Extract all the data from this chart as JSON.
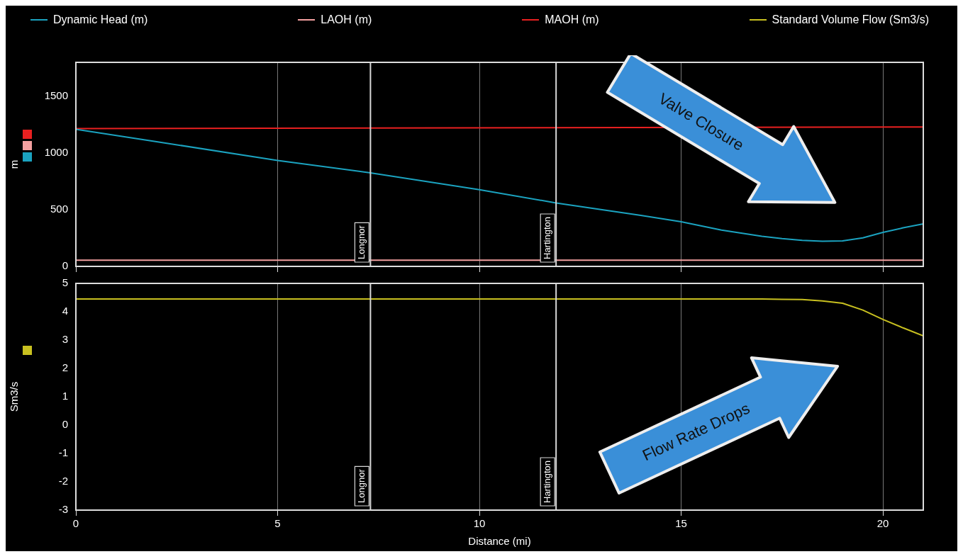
{
  "chart_data": [
    {
      "type": "line",
      "ylabel": "m",
      "legend": "top",
      "grid": "x",
      "marker": "none",
      "tick_labels": "y",
      "xlim": [
        0,
        21
      ],
      "xticks": [
        0,
        5,
        10,
        15,
        20
      ],
      "ylim": [
        0,
        1800
      ],
      "yticks": [
        0,
        500,
        1000,
        1500
      ],
      "series": [
        {
          "name": "Dynamic Head (m)",
          "color": "#1ba3c0",
          "x": [
            0,
            2,
            5,
            7.3,
            10,
            11.9,
            14,
            15,
            16,
            17,
            17.5,
            18,
            18.5,
            19,
            19.5,
            20,
            20.5,
            21
          ],
          "values": [
            1210,
            1100,
            935,
            825,
            677,
            560,
            450,
            394,
            320,
            265,
            245,
            230,
            222,
            225,
            252,
            300,
            340,
            375
          ]
        },
        {
          "name": "LAOH (m)",
          "color": "#f4a0a0",
          "x": [
            0,
            21
          ],
          "values": [
            55,
            55
          ]
        },
        {
          "name": "MAOH (m)",
          "color": "#e82020",
          "x": [
            0,
            21
          ],
          "values": [
            1215,
            1230
          ]
        }
      ],
      "ref_lines": [
        {
          "axis": "x",
          "value": 7.3,
          "label": "Longnor",
          "color": "#d8d8d8"
        },
        {
          "axis": "x",
          "value": 11.9,
          "label": "Hartington",
          "color": "#d8d8d8"
        }
      ],
      "annotations": [
        "Valve Closure"
      ]
    },
    {
      "type": "line",
      "xlabel": "Distance (mi)",
      "ylabel": "Sm3/s",
      "legend": "top",
      "grid": "x",
      "marker": "none",
      "xlim": [
        0,
        21
      ],
      "xticks": [
        0,
        5,
        10,
        15,
        20
      ],
      "ylim": [
        -3,
        5
      ],
      "yticks": [
        -3,
        -2,
        -1,
        0,
        1,
        2,
        3,
        4,
        5
      ],
      "series": [
        {
          "name": "Standard Volume Flow (Sm3/s)",
          "color": "#c8c020",
          "x": [
            0,
            17,
            17.5,
            18,
            18.5,
            19,
            19.5,
            20,
            20.5,
            21
          ],
          "values": [
            4.45,
            4.45,
            4.44,
            4.43,
            4.38,
            4.3,
            4.06,
            3.73,
            3.43,
            3.15
          ]
        }
      ],
      "ref_lines": [
        {
          "axis": "x",
          "value": 7.3,
          "label": "Longnor",
          "color": "#d8d8d8"
        },
        {
          "axis": "x",
          "value": 11.9,
          "label": "Hartington",
          "color": "#d8d8d8"
        }
      ],
      "annotations": [
        "Flow Rate Drops"
      ]
    }
  ]
}
